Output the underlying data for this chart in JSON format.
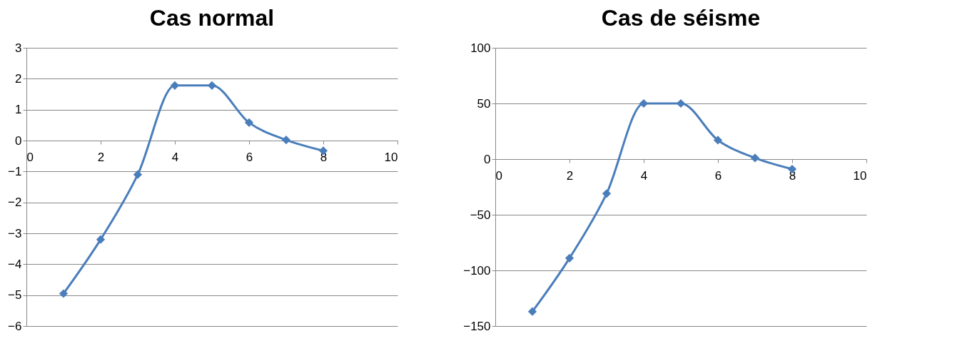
{
  "chart_data": [
    {
      "type": "line",
      "title": "Cas normal",
      "x": [
        1,
        2,
        3,
        4,
        5,
        6,
        7,
        8
      ],
      "series": [
        {
          "color": "#4a7ebb",
          "values": [
            -4.95,
            -3.2,
            -1.1,
            1.78,
            1.78,
            0.58,
            0.02,
            -0.33
          ]
        }
      ],
      "xlim": [
        0,
        10
      ],
      "xticks": [
        0,
        2,
        4,
        6,
        8,
        10
      ],
      "ylim": [
        -6,
        3
      ],
      "yticks": [
        -6,
        -5,
        -4,
        -3,
        -2,
        -1,
        0,
        1,
        2,
        3
      ],
      "grid": "y",
      "marker": "diamond",
      "line_style": "solid",
      "legend": false
    },
    {
      "type": "line",
      "title": "Cas de séisme",
      "x": [
        1,
        2,
        3,
        4,
        5,
        6,
        7,
        8
      ],
      "series": [
        {
          "color": "#4a7ebb",
          "values": [
            -137,
            -89,
            -31,
            50,
            50,
            17,
            1,
            -9
          ]
        }
      ],
      "xlim": [
        0,
        10
      ],
      "xticks": [
        0,
        2,
        4,
        6,
        8,
        10
      ],
      "ylim": [
        -150,
        100
      ],
      "yticks": [
        -150,
        -100,
        -50,
        0,
        50,
        100
      ],
      "grid": "y",
      "marker": "diamond",
      "line_style": "solid",
      "legend": false
    }
  ]
}
